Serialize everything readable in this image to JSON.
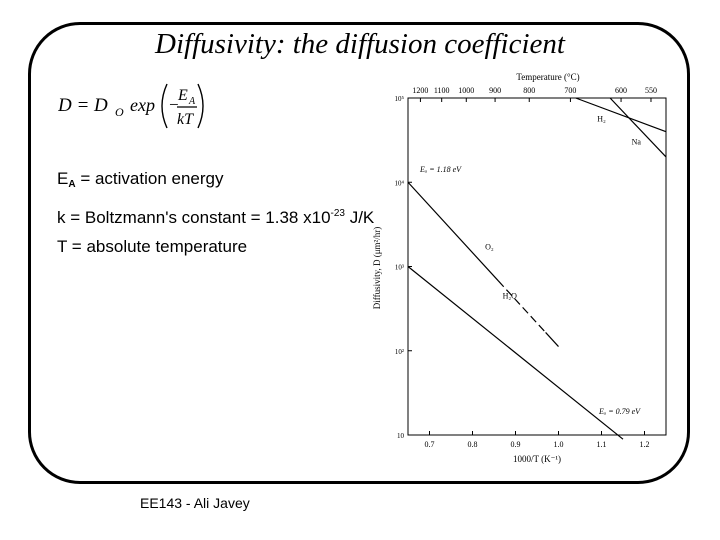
{
  "slide": {
    "title": "Diffusivity: the diffusion coefficient",
    "equation": {
      "lhs": "D = D",
      "lhs_sub": "O",
      "func": "exp",
      "minus": "−",
      "num": "E",
      "num_sub": "A",
      "den": "kT"
    },
    "definitions": [
      {
        "sym": "E",
        "sub": "A",
        "text": "= activation energy"
      },
      {
        "pre": "k = Boltzmann's constant = 1.38 x10",
        "sup": "-23",
        "post": " J/K"
      },
      {
        "text": "T = absolute temperature"
      }
    ],
    "footer": "EE143 - Ali Javey"
  },
  "chart_data": {
    "type": "line",
    "xlabel": "1000/T (K⁻¹)",
    "ylabel": "Diffusivity, D (μm²/hr)",
    "top_axis_label": "Temperature (°C)",
    "xlim": [
      0.65,
      1.25
    ],
    "ylim_log10": [
      1,
      5
    ],
    "y_scale": "log",
    "x_ticks": [
      "0.7",
      "0.8",
      "0.9",
      "1.0",
      "1.1",
      "1.2"
    ],
    "y_ticks": [
      "10",
      "10²",
      "10³",
      "10⁴",
      "10⁵"
    ],
    "top_ticks": [
      "1200",
      "1100",
      "1000",
      "900",
      "800",
      "700",
      "600",
      "550"
    ],
    "series": [
      {
        "name": "O₂",
        "x": [
          0.65,
          1.0
        ],
        "log10_y": [
          4.0,
          2.05
        ],
        "dash_range": [
          0.86,
          0.97
        ]
      },
      {
        "name": "H₂O",
        "x": [
          0.65,
          1.15
        ],
        "log10_y": [
          3.0,
          0.95
        ]
      },
      {
        "name": "H₂",
        "x": [
          1.04,
          1.25
        ],
        "log10_y": [
          5.0,
          4.6
        ]
      },
      {
        "name": "Na",
        "x": [
          1.12,
          1.25
        ],
        "log10_y": [
          5.0,
          4.3
        ]
      }
    ],
    "annotations": [
      "Eₐ = 1.18 eV",
      "Eₐ = 0.79 eV"
    ]
  }
}
